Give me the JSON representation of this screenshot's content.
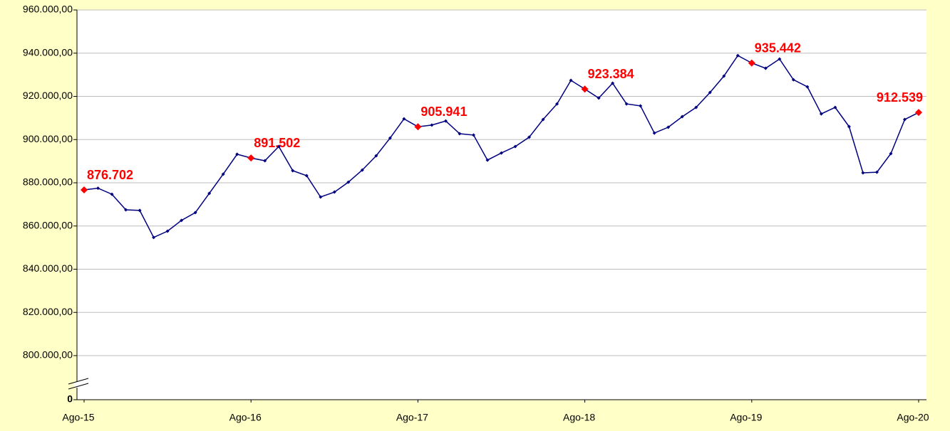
{
  "chart_data": {
    "type": "line",
    "categories": [
      "Ago-15",
      null,
      null,
      null,
      null,
      null,
      null,
      null,
      null,
      null,
      null,
      null,
      "Ago-16",
      null,
      null,
      null,
      null,
      null,
      null,
      null,
      null,
      null,
      null,
      null,
      "Ago-17",
      null,
      null,
      null,
      null,
      null,
      null,
      null,
      null,
      null,
      null,
      null,
      "Ago-18",
      null,
      null,
      null,
      null,
      null,
      null,
      null,
      null,
      null,
      null,
      null,
      "Ago-19",
      null,
      null,
      null,
      null,
      null,
      null,
      null,
      null,
      null,
      null,
      null,
      "Ago-20"
    ],
    "values": [
      876702,
      877500,
      874700,
      867500,
      867200,
      854700,
      857600,
      862600,
      866200,
      875100,
      884000,
      893200,
      891502,
      890200,
      896800,
      885600,
      883300,
      873400,
      875700,
      880300,
      885900,
      892500,
      900700,
      909600,
      905941,
      906700,
      908600,
      902700,
      902100,
      890500,
      893800,
      896800,
      901100,
      909300,
      916500,
      927400,
      923384,
      919200,
      926100,
      916500,
      915600,
      903000,
      905700,
      910600,
      914900,
      921800,
      929400,
      938900,
      935442,
      933000,
      937300,
      927700,
      924400,
      911900,
      914900,
      906000,
      884600,
      884900,
      893500,
      909300,
      912539
    ],
    "value_labels": [
      "876.702",
      null,
      null,
      null,
      null,
      null,
      null,
      null,
      null,
      null,
      null,
      null,
      "891.502",
      null,
      null,
      null,
      null,
      null,
      null,
      null,
      null,
      null,
      null,
      null,
      "905.941",
      null,
      null,
      null,
      null,
      null,
      null,
      null,
      null,
      null,
      null,
      null,
      "923.384",
      null,
      null,
      null,
      null,
      null,
      null,
      null,
      null,
      null,
      null,
      null,
      "935.442",
      null,
      null,
      null,
      null,
      null,
      null,
      null,
      null,
      null,
      null,
      null,
      "912.539"
    ],
    "color": "#000080",
    "highlight_color": "#ff0000",
    "ylim": [
      0,
      960000
    ],
    "y_break": [
      0,
      800000
    ],
    "yticks": [
      0,
      {
        "value": 800000,
        "label": "800.000,00"
      },
      {
        "value": 820000,
        "label": "820.000,00"
      },
      {
        "value": 840000,
        "label": "840.000,00"
      },
      {
        "value": 860000,
        "label": "860.000,00"
      },
      {
        "value": 880000,
        "label": "880.000,00"
      },
      {
        "value": 900000,
        "label": "900.000,00"
      },
      {
        "value": 920000,
        "label": "920.000,00"
      },
      {
        "value": 940000,
        "label": "940.000,00"
      },
      {
        "value": 960000,
        "label": "960.000,00"
      }
    ],
    "grid": true
  }
}
